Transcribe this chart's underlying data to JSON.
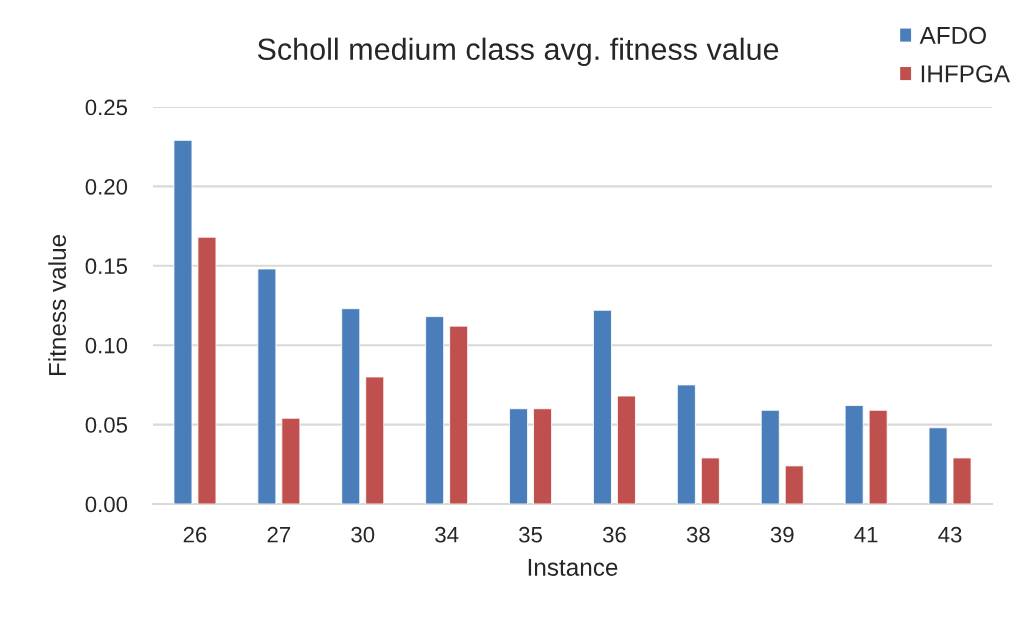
{
  "chart_data": {
    "type": "bar",
    "title": "Scholl medium class avg. fitness value",
    "xlabel": "Instance",
    "ylabel": "Fitness value",
    "categories": [
      "26",
      "27",
      "30",
      "34",
      "35",
      "36",
      "38",
      "39",
      "41",
      "43"
    ],
    "series": [
      {
        "name": "AFDO",
        "color": "#4a7ebb",
        "values": [
          0.229,
          0.148,
          0.123,
          0.118,
          0.06,
          0.122,
          0.075,
          0.059,
          0.062,
          0.048
        ]
      },
      {
        "name": "IHFPGA",
        "color": "#c0504d",
        "values": [
          0.168,
          0.054,
          0.08,
          0.112,
          0.06,
          0.068,
          0.029,
          0.024,
          0.059,
          0.029
        ]
      }
    ],
    "ylim": [
      0,
      0.25
    ],
    "yticks": [
      {
        "value": 0,
        "label": "0.00"
      },
      0.05,
      {
        "value": 0.1,
        "label": "0.10"
      },
      0.15,
      {
        "value": 0.2,
        "label": "0.20"
      },
      0.25
    ],
    "grid": "y",
    "legend": "top right"
  }
}
